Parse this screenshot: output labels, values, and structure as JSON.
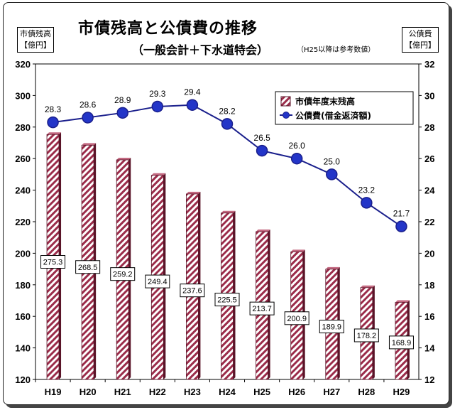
{
  "header": {
    "title": "市債残高と公債費の推移",
    "subtitle": "（一般会計＋下水道特会）",
    "note": "（H25以降は参考数値）",
    "unit_left_line1": "市債残高",
    "unit_left_line2": "【億円】",
    "unit_right_line1": "公債費",
    "unit_right_line2": "【億円】"
  },
  "colors": {
    "bar_stripe": "#9b2c4a",
    "line": "#1a1f8c",
    "marker": "#2335c8"
  },
  "chart_data": {
    "type": "bar+line",
    "categories": [
      "H19",
      "H20",
      "H21",
      "H22",
      "H23",
      "H24",
      "H25",
      "H26",
      "H27",
      "H28",
      "H29"
    ],
    "series": [
      {
        "name": "市債年度末残高",
        "type": "bar",
        "axis": "left",
        "values": [
          275.3,
          268.5,
          259.2,
          249.4,
          237.6,
          225.5,
          213.7,
          200.9,
          189.9,
          178.2,
          168.9
        ]
      },
      {
        "name": "公債費(借金返済額)",
        "type": "line",
        "axis": "right",
        "values": [
          28.3,
          28.6,
          28.9,
          29.3,
          29.4,
          28.2,
          26.5,
          26.0,
          25.0,
          23.2,
          21.7
        ]
      }
    ],
    "left_axis": {
      "min": 120,
      "max": 320,
      "step": 20,
      "ticks": [
        "120",
        "140",
        "160",
        "180",
        "200",
        "220",
        "240",
        "260",
        "280",
        "300",
        "320"
      ]
    },
    "right_axis": {
      "min": 12,
      "max": 32,
      "step": 2,
      "ticks": [
        "12",
        "14",
        "16",
        "18",
        "20",
        "22",
        "24",
        "26",
        "28",
        "30",
        "32"
      ]
    },
    "legend_position": "top-right",
    "grid": false
  }
}
